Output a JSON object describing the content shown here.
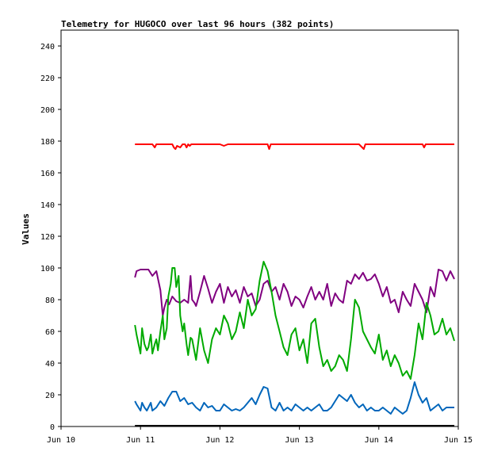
{
  "chart_data": {
    "type": "line",
    "title": "Telemetry for HUGOCO over last 96 hours (382 points)",
    "ylabel": "Values",
    "xlabel": "",
    "ylim": [
      0,
      250
    ],
    "yticks": [
      0,
      20,
      40,
      60,
      80,
      100,
      120,
      140,
      160,
      180,
      200,
      220,
      240
    ],
    "xlim": [
      10,
      15
    ],
    "xticks": [
      {
        "value": 10,
        "label": "Jun 10"
      },
      {
        "value": 11,
        "label": "Jun 11"
      },
      {
        "value": 12,
        "label": "Jun 12"
      },
      {
        "value": 13,
        "label": "Jun 13"
      },
      {
        "value": 14,
        "label": "Jun 14"
      },
      {
        "value": 15,
        "label": "Jun 15"
      }
    ],
    "grid": false,
    "legend": "none",
    "series": [
      {
        "color": "#ff0000",
        "x": [
          10.93,
          11.1,
          11.15,
          11.18,
          11.2,
          11.3,
          11.4,
          11.42,
          11.44,
          11.46,
          11.5,
          11.53,
          11.56,
          11.58,
          11.6,
          11.62,
          11.64,
          11.8,
          12.0,
          12.05,
          12.1,
          12.15,
          12.2,
          12.4,
          12.6,
          12.62,
          12.64,
          12.8,
          13.0,
          13.2,
          13.4,
          13.6,
          13.75,
          13.77,
          13.79,
          13.81,
          13.83,
          13.85,
          14.0,
          14.2,
          14.4,
          14.55,
          14.57,
          14.59,
          14.8,
          14.95
        ],
        "y": [
          178,
          178,
          178,
          176,
          178,
          178,
          178,
          176,
          175,
          177,
          176,
          178,
          178,
          176,
          178,
          177,
          178,
          178,
          178,
          177,
          178,
          178,
          178,
          178,
          178,
          175,
          178,
          178,
          178,
          178,
          178,
          178,
          178,
          177,
          176,
          175,
          178,
          178,
          178,
          178,
          178,
          178,
          176,
          178,
          178,
          178
        ]
      },
      {
        "color": "#800080",
        "x": [
          10.93,
          10.95,
          11.0,
          11.05,
          11.1,
          11.15,
          11.2,
          11.25,
          11.28,
          11.3,
          11.33,
          11.36,
          11.4,
          11.45,
          11.5,
          11.55,
          11.6,
          11.63,
          11.65,
          11.68,
          11.7,
          11.75,
          11.8,
          11.85,
          11.9,
          11.95,
          12.0,
          12.05,
          12.1,
          12.15,
          12.2,
          12.25,
          12.3,
          12.35,
          12.4,
          12.45,
          12.5,
          12.55,
          12.6,
          12.65,
          12.7,
          12.75,
          12.8,
          12.85,
          12.9,
          12.95,
          13.0,
          13.05,
          13.1,
          13.15,
          13.2,
          13.25,
          13.3,
          13.35,
          13.4,
          13.45,
          13.5,
          13.55,
          13.6,
          13.65,
          13.7,
          13.75,
          13.8,
          13.85,
          13.9,
          13.95,
          14.0,
          14.05,
          14.1,
          14.15,
          14.2,
          14.25,
          14.3,
          14.35,
          14.4,
          14.45,
          14.5,
          14.55,
          14.6,
          14.65,
          14.7,
          14.75,
          14.8,
          14.85,
          14.9,
          14.95
        ],
        "y": [
          94,
          98,
          99,
          99,
          99,
          95,
          98,
          86,
          70,
          75,
          80,
          77,
          82,
          79,
          78,
          80,
          78,
          95,
          80,
          78,
          76,
          85,
          95,
          87,
          78,
          85,
          90,
          78,
          88,
          82,
          86,
          78,
          88,
          82,
          84,
          76,
          80,
          90,
          92,
          85,
          88,
          80,
          90,
          85,
          76,
          82,
          80,
          75,
          82,
          88,
          80,
          85,
          80,
          90,
          76,
          84,
          80,
          78,
          92,
          90,
          96,
          93,
          97,
          92,
          93,
          96,
          90,
          82,
          88,
          78,
          80,
          72,
          85,
          80,
          76,
          90,
          85,
          80,
          72,
          88,
          82,
          99,
          98,
          92,
          98,
          93
        ]
      },
      {
        "color": "#00aa00",
        "x": [
          10.93,
          10.95,
          11.0,
          11.02,
          11.05,
          11.08,
          11.1,
          11.13,
          11.15,
          11.18,
          11.2,
          11.22,
          11.25,
          11.28,
          11.3,
          11.33,
          11.35,
          11.38,
          11.4,
          11.43,
          11.45,
          11.48,
          11.5,
          11.53,
          11.55,
          11.58,
          11.6,
          11.63,
          11.65,
          11.7,
          11.75,
          11.8,
          11.85,
          11.9,
          11.95,
          12.0,
          12.05,
          12.1,
          12.15,
          12.2,
          12.25,
          12.3,
          12.35,
          12.4,
          12.45,
          12.5,
          12.55,
          12.6,
          12.65,
          12.7,
          12.75,
          12.8,
          12.85,
          12.9,
          12.95,
          13.0,
          13.05,
          13.1,
          13.15,
          13.2,
          13.25,
          13.3,
          13.35,
          13.4,
          13.45,
          13.5,
          13.55,
          13.6,
          13.65,
          13.7,
          13.75,
          13.8,
          13.85,
          13.9,
          13.95,
          14.0,
          14.05,
          14.1,
          14.15,
          14.2,
          14.25,
          14.3,
          14.35,
          14.4,
          14.45,
          14.5,
          14.55,
          14.6,
          14.65,
          14.7,
          14.75,
          14.8,
          14.85,
          14.9,
          14.95
        ],
        "y": [
          64,
          58,
          46,
          62,
          52,
          48,
          50,
          58,
          46,
          52,
          55,
          48,
          60,
          70,
          55,
          62,
          82,
          90,
          100,
          100,
          88,
          95,
          70,
          60,
          65,
          52,
          45,
          56,
          55,
          42,
          62,
          48,
          40,
          55,
          62,
          58,
          70,
          65,
          55,
          60,
          72,
          62,
          80,
          70,
          74,
          92,
          104,
          98,
          85,
          70,
          60,
          50,
          45,
          58,
          62,
          48,
          55,
          40,
          65,
          68,
          50,
          38,
          42,
          35,
          38,
          45,
          42,
          35,
          55,
          80,
          75,
          60,
          55,
          50,
          46,
          58,
          42,
          48,
          38,
          45,
          40,
          32,
          35,
          30,
          45,
          65,
          55,
          78,
          70,
          58,
          60,
          68,
          58,
          62,
          54
        ]
      },
      {
        "color": "#0066bb",
        "x": [
          10.93,
          10.95,
          11.0,
          11.02,
          11.05,
          11.08,
          11.1,
          11.13,
          11.15,
          11.2,
          11.25,
          11.3,
          11.35,
          11.4,
          11.45,
          11.5,
          11.55,
          11.6,
          11.65,
          11.7,
          11.75,
          11.8,
          11.85,
          11.9,
          11.95,
          12.0,
          12.05,
          12.1,
          12.15,
          12.2,
          12.25,
          12.3,
          12.35,
          12.4,
          12.45,
          12.5,
          12.55,
          12.6,
          12.65,
          12.7,
          12.75,
          12.8,
          12.85,
          12.9,
          12.95,
          13.0,
          13.05,
          13.1,
          13.15,
          13.2,
          13.25,
          13.3,
          13.35,
          13.4,
          13.45,
          13.5,
          13.55,
          13.6,
          13.65,
          13.7,
          13.75,
          13.8,
          13.85,
          13.9,
          13.95,
          14.0,
          14.05,
          14.1,
          14.15,
          14.2,
          14.25,
          14.3,
          14.35,
          14.4,
          14.45,
          14.5,
          14.55,
          14.6,
          14.65,
          14.7,
          14.75,
          14.8,
          14.85,
          14.9,
          14.95
        ],
        "y": [
          16,
          14,
          10,
          15,
          12,
          10,
          12,
          15,
          10,
          12,
          16,
          13,
          18,
          22,
          22,
          16,
          18,
          14,
          15,
          12,
          10,
          15,
          12,
          13,
          10,
          10,
          14,
          12,
          10,
          11,
          10,
          12,
          15,
          18,
          14,
          20,
          25,
          24,
          12,
          10,
          15,
          10,
          12,
          10,
          14,
          12,
          10,
          12,
          10,
          12,
          14,
          10,
          10,
          12,
          16,
          20,
          18,
          16,
          20,
          15,
          12,
          14,
          10,
          12,
          10,
          10,
          12,
          10,
          8,
          12,
          10,
          8,
          10,
          18,
          28,
          20,
          15,
          18,
          10,
          12,
          14,
          10,
          12,
          12,
          12
        ]
      }
    ]
  }
}
